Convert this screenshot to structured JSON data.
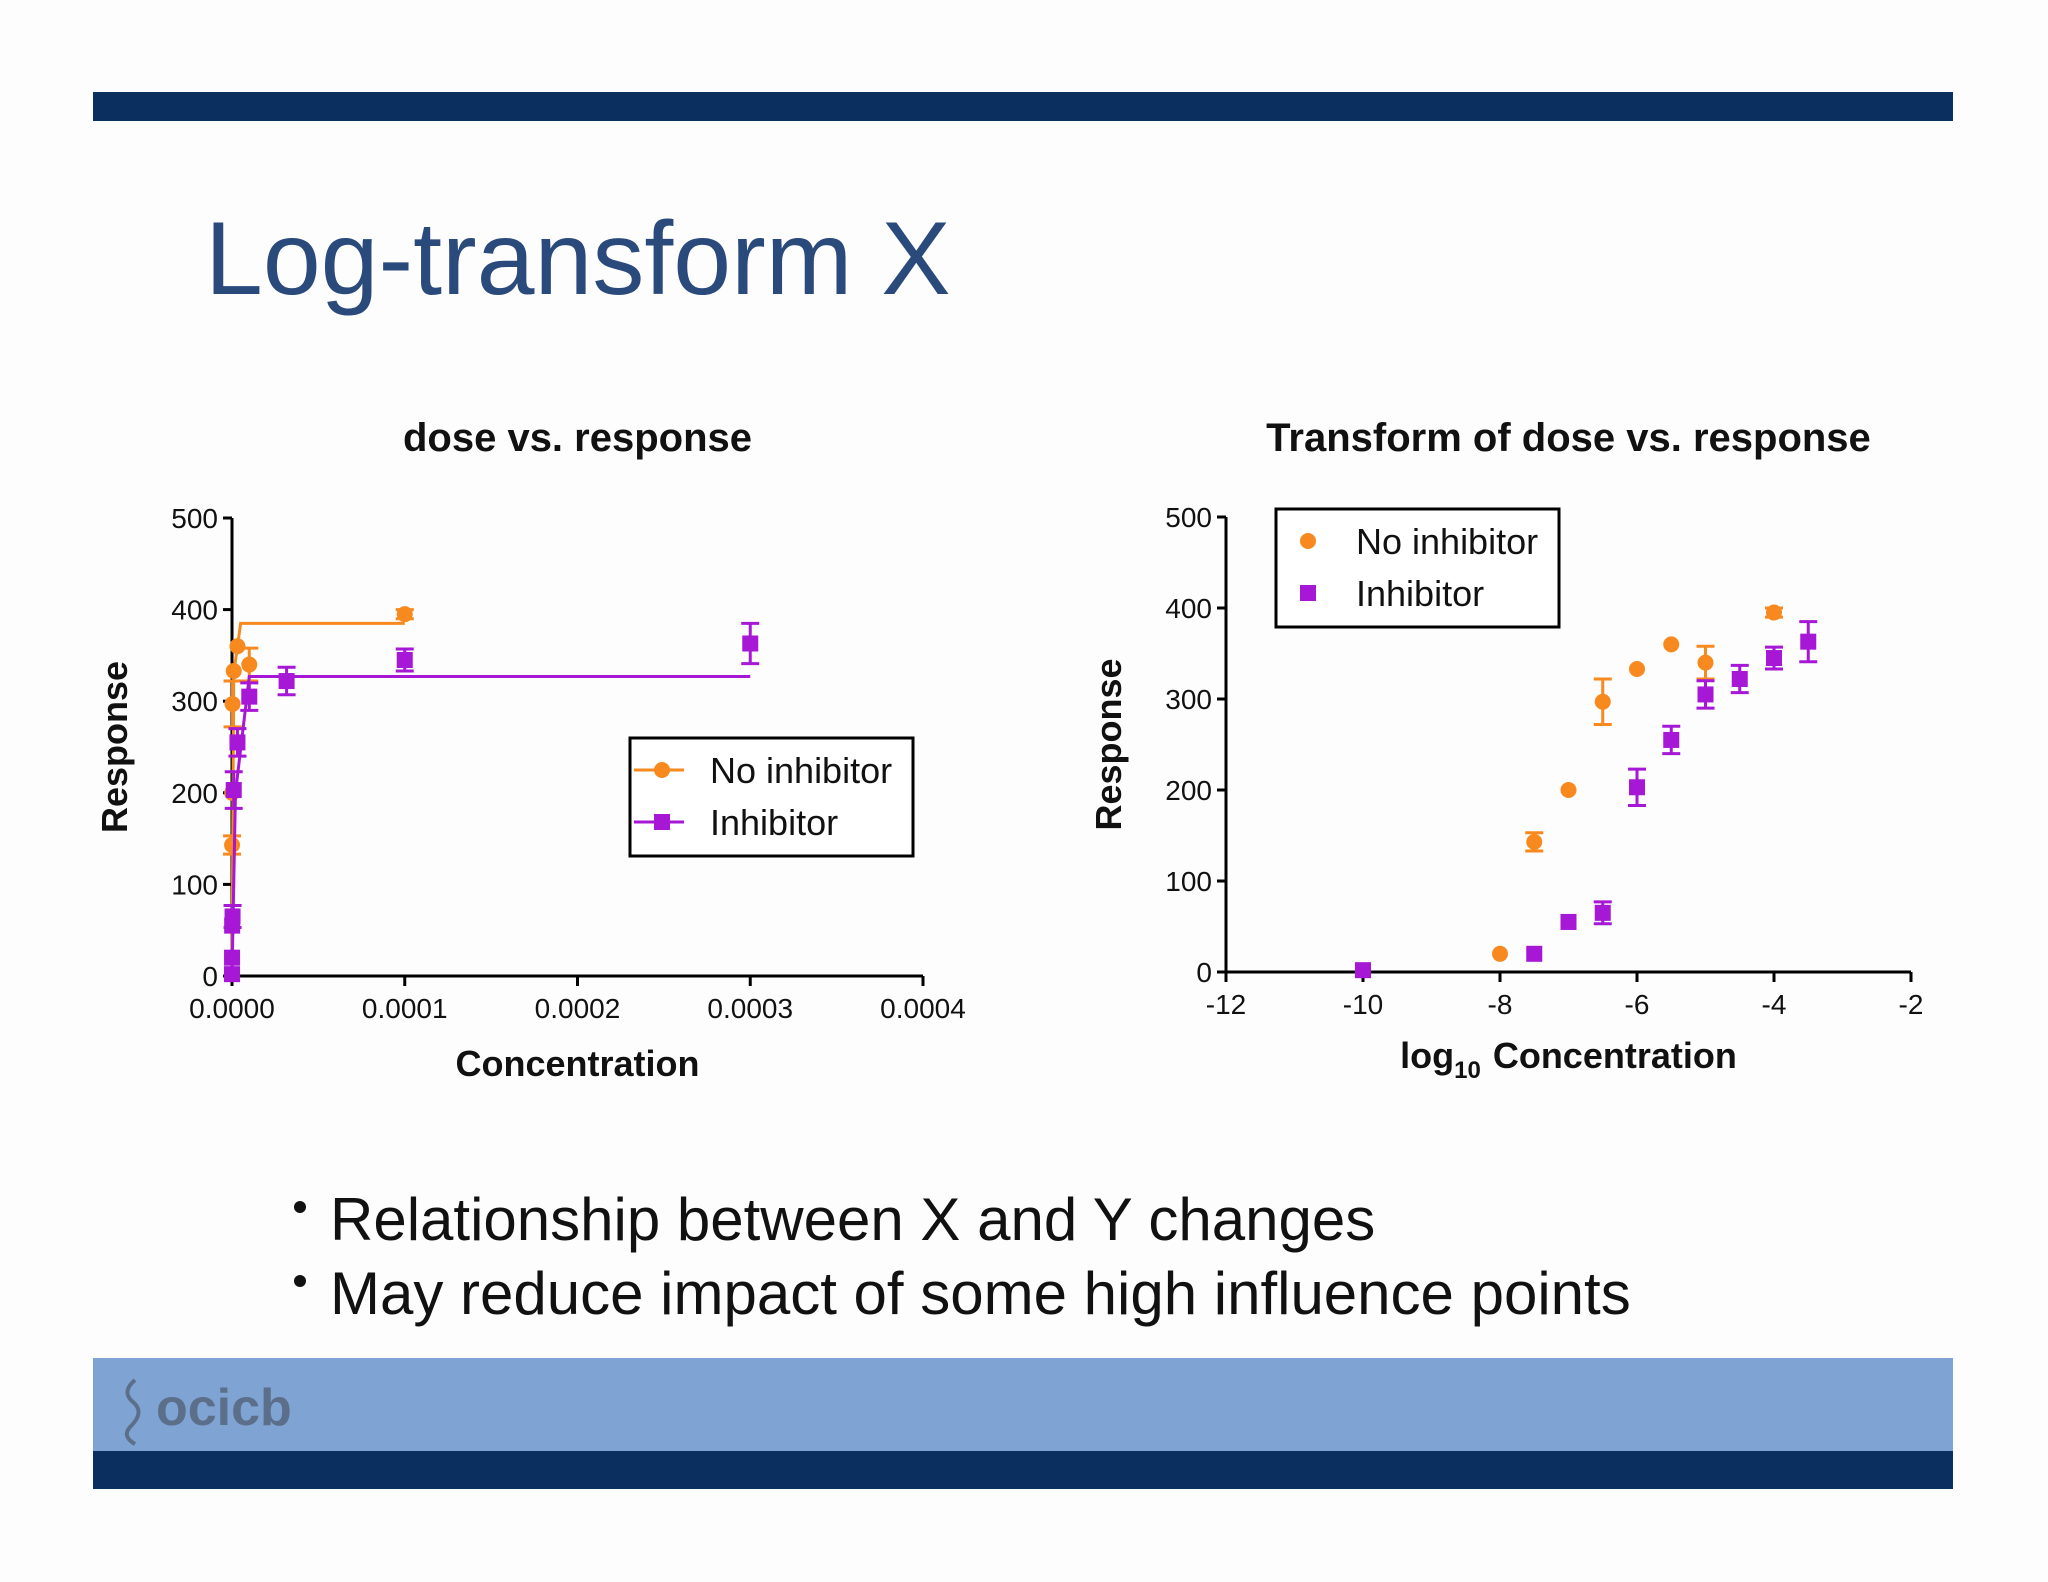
{
  "slide": {
    "title": "Log-transform X",
    "bullets": [
      "Relationship between X and Y changes",
      "May reduce impact of some high influence points"
    ],
    "logo": "ocicb"
  },
  "chart_data": [
    {
      "type": "scatter",
      "title": "dose vs. response",
      "x_label": "Concentration",
      "y_label": "Response",
      "xlim": [
        0,
        0.0004
      ],
      "xticks": [
        {
          "value": 0,
          "label": "0.0000"
        },
        {
          "value": 0.0001,
          "label": "0.0001"
        },
        {
          "value": 0.0002,
          "label": "0.0002"
        },
        {
          "value": 0.0003,
          "label": "0.0003"
        },
        {
          "value": 0.0004,
          "label": "0.0004"
        }
      ],
      "ylim": [
        0,
        500
      ],
      "yticks": [
        0,
        100,
        200,
        300,
        400,
        500
      ],
      "legend": "lower right",
      "series": [
        {
          "name": "No inhibitor",
          "color": "#f7891e",
          "marker": "circle",
          "x": [
            1e-08,
            3.16e-08,
            1e-07,
            3.16e-07,
            1e-06,
            3.16e-06,
            1e-05,
            0.0001
          ],
          "values": [
            20,
            143,
            200,
            297,
            333,
            360,
            340,
            395
          ],
          "errors": [
            0,
            10,
            0,
            25,
            0,
            0,
            18,
            5
          ],
          "fit": {
            "x": [
              0,
              1e-06,
              5e-06,
              0.0001
            ],
            "values": [
              0,
              330,
              385,
              385
            ]
          }
        },
        {
          "name": "Inhibitor",
          "color": "#a617d6",
          "marker": "square",
          "x": [
            1e-10,
            3.16e-08,
            1e-07,
            3.16e-07,
            1e-06,
            3.16e-06,
            1e-05,
            3.16e-05,
            0.0001,
            0.0003
          ],
          "values": [
            2,
            20,
            55,
            65,
            203,
            255,
            305,
            322,
            345,
            363
          ],
          "errors": [
            0,
            0,
            0,
            12,
            20,
            15,
            15,
            15,
            12,
            22
          ],
          "fit": {
            "x": [
              0,
              2e-06,
              1e-05,
              0.0003
            ],
            "values": [
              0,
              200,
              327,
              327
            ]
          }
        }
      ]
    },
    {
      "type": "scatter",
      "title": "Transform of dose vs. response",
      "x_label": {
        "base": "log",
        "sub": "10",
        "rest": "Concentration"
      },
      "y_label": "Response",
      "xlim": [
        -12,
        -2
      ],
      "xticks": [
        -12,
        -10,
        -8,
        -6,
        -4,
        -2
      ],
      "ylim": [
        0,
        500
      ],
      "yticks": [
        0,
        100,
        200,
        300,
        400,
        500
      ],
      "legend": "upper left",
      "series": [
        {
          "name": "No inhibitor",
          "color": "#f7891e",
          "marker": "circle",
          "x": [
            -8,
            -7.5,
            -7,
            -6.5,
            -6,
            -5.5,
            -5,
            -4
          ],
          "values": [
            20,
            143,
            200,
            297,
            333,
            360,
            340,
            395
          ],
          "errors": [
            0,
            10,
            0,
            25,
            0,
            0,
            18,
            5
          ]
        },
        {
          "name": "Inhibitor",
          "color": "#a617d6",
          "marker": "square",
          "x": [
            -10,
            -7.5,
            -7,
            -6.5,
            -6,
            -5.5,
            -5,
            -4.5,
            -4,
            -3.5
          ],
          "values": [
            2,
            20,
            55,
            65,
            203,
            255,
            305,
            322,
            345,
            363
          ],
          "errors": [
            0,
            0,
            0,
            12,
            20,
            15,
            15,
            15,
            12,
            22
          ]
        }
      ]
    }
  ]
}
